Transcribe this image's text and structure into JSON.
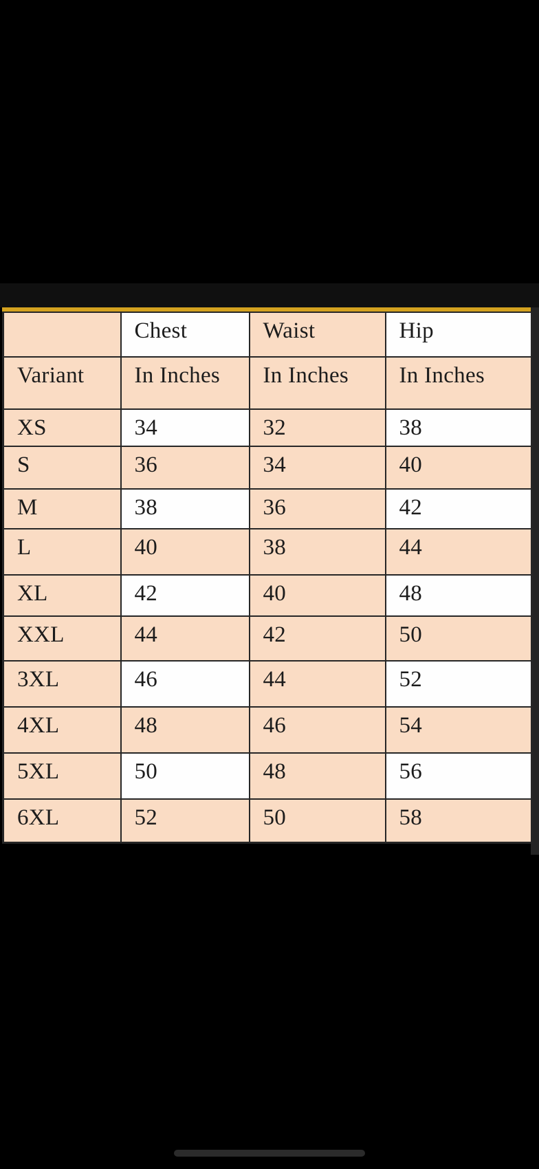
{
  "chart_data": {
    "type": "table",
    "columns": [
      "Variant",
      "Chest (In Inches)",
      "Waist (In Inches)",
      "Hip (In Inches)"
    ],
    "rows": [
      [
        "XS",
        34,
        32,
        38
      ],
      [
        "S",
        36,
        34,
        40
      ],
      [
        "M",
        38,
        36,
        42
      ],
      [
        "L",
        40,
        38,
        44
      ],
      [
        "XL",
        42,
        40,
        48
      ],
      [
        "XXL",
        44,
        42,
        50
      ],
      [
        "3XL",
        46,
        44,
        52
      ],
      [
        "4XL",
        48,
        46,
        54
      ],
      [
        "5XL",
        50,
        48,
        56
      ],
      [
        "6XL",
        52,
        50,
        58
      ]
    ],
    "layout_hints": {
      "grid": "on",
      "header_rows": 2,
      "striping": "columns 1 and 3 always peach; columns 2 and 4 alternate white/peach by row"
    }
  },
  "table": {
    "header_row1": [
      "",
      "Chest",
      "Waist",
      "Hip"
    ],
    "header_row2": [
      "Variant",
      "In Inches",
      "In Inches",
      "In Inches"
    ],
    "rows": [
      {
        "variant": "XS",
        "chest": "34",
        "waist": "32",
        "hip": "38"
      },
      {
        "variant": "S",
        "chest": "36",
        "waist": "34",
        "hip": "40"
      },
      {
        "variant": "M",
        "chest": "38",
        "waist": "36",
        "hip": "42"
      },
      {
        "variant": "L",
        "chest": "40",
        "waist": "38",
        "hip": "44"
      },
      {
        "variant": "XL",
        "chest": "42",
        "waist": "40",
        "hip": "48"
      },
      {
        "variant": "XXL",
        "chest": "44",
        "waist": "42",
        "hip": "50"
      },
      {
        "variant": "3XL",
        "chest": "46",
        "waist": "44",
        "hip": "52"
      },
      {
        "variant": "4XL",
        "chest": "48",
        "waist": "46",
        "hip": "54"
      },
      {
        "variant": "5XL",
        "chest": "50",
        "waist": "48",
        "hip": "56"
      },
      {
        "variant": "6XL",
        "chest": "52",
        "waist": "50",
        "hip": "58"
      }
    ],
    "colors": {
      "peach": "#fadcc4",
      "cell_white": "#fefefe",
      "border": "#262626",
      "accent_gold": "#d4a21f",
      "text": "#1c1c1c",
      "page_background": "#000000",
      "home_indicator": "#2b2b2b"
    }
  }
}
